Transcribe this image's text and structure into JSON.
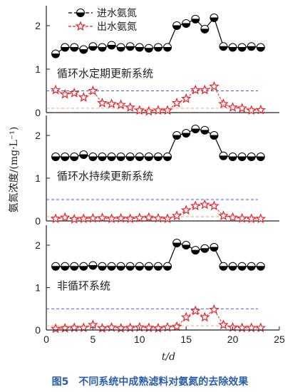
{
  "caption": "图5　不同系统中成熟滤料对氨氮的去除效果",
  "chart_data": {
    "type": "line",
    "xlabel": "t/d",
    "ylabel": "氨氮浓度/(mg·L⁻¹)",
    "xlim": [
      0,
      25
    ],
    "xticks": [
      "0",
      "5",
      "10",
      "15",
      "20",
      "25"
    ],
    "legend": [
      "进水氨氮",
      "出水氨氮"
    ],
    "legend_position": "top-left",
    "colors": {
      "influent": "#000000",
      "effluent": "#e8202a",
      "ref_blue": "#4a5ad8",
      "ref_orange": "#f0a060"
    },
    "panels": [
      {
        "title": "循环水定期更新系统",
        "yticks": [
          "0",
          "1",
          "2"
        ],
        "ylim": [
          0,
          2.35
        ],
        "ref_lines": [
          0.5,
          0.1
        ],
        "x": [
          1,
          2,
          3,
          4,
          5,
          6,
          7,
          8,
          9,
          10,
          11,
          12,
          13,
          14,
          15,
          16,
          17,
          18,
          19,
          20,
          21,
          22,
          23
        ],
        "series": [
          {
            "name": "进水氨氮",
            "values": [
              1.35,
              1.5,
              1.5,
              1.45,
              1.52,
              1.5,
              1.55,
              1.5,
              1.52,
              1.5,
              1.48,
              1.5,
              1.5,
              2.0,
              2.05,
              2.15,
              1.92,
              2.18,
              1.52,
              1.5,
              1.5,
              1.52,
              1.5
            ]
          },
          {
            "name": "出水氨氮",
            "values": [
              0.52,
              0.42,
              0.45,
              0.35,
              0.5,
              0.22,
              0.2,
              0.18,
              0.12,
              0.05,
              0.03,
              0.05,
              0.05,
              0.22,
              0.32,
              0.52,
              0.52,
              0.6,
              0.2,
              0.12,
              0.1,
              0.05,
              0.06
            ]
          }
        ]
      },
      {
        "title": "循环水持续更新系统",
        "yticks": [
          "0",
          "1",
          "2"
        ],
        "ylim": [
          0,
          2.35
        ],
        "ref_lines": [
          0.5,
          0.1
        ],
        "x": [
          1,
          2,
          3,
          4,
          5,
          6,
          7,
          8,
          9,
          10,
          11,
          12,
          13,
          14,
          15,
          16,
          17,
          18,
          19,
          20,
          21,
          22,
          23
        ],
        "series": [
          {
            "name": "进水氨氮",
            "values": [
              1.5,
              1.5,
              1.5,
              1.55,
              1.5,
              1.5,
              1.5,
              1.5,
              1.5,
              1.5,
              1.5,
              1.5,
              1.5,
              2.0,
              2.05,
              2.15,
              2.12,
              2.0,
              1.52,
              1.5,
              1.5,
              1.5,
              1.5
            ]
          },
          {
            "name": "出水氨氮",
            "values": [
              0.05,
              0.08,
              0.04,
              0.05,
              0.06,
              0.07,
              0.05,
              0.06,
              0.05,
              0.07,
              0.08,
              0.06,
              0.05,
              0.12,
              0.25,
              0.35,
              0.38,
              0.35,
              0.12,
              0.08,
              0.06,
              0.05,
              0.05
            ]
          }
        ]
      },
      {
        "title": "非循环系统",
        "yticks": [
          "0",
          "1",
          "2"
        ],
        "ylim": [
          0,
          2.35
        ],
        "ref_lines": [
          0.5,
          0.1
        ],
        "x": [
          1,
          2,
          3,
          4,
          5,
          6,
          7,
          8,
          9,
          10,
          11,
          12,
          13,
          14,
          15,
          16,
          17,
          18,
          19,
          20,
          21,
          22,
          23
        ],
        "series": [
          {
            "name": "进水氨氮",
            "values": [
              1.5,
              1.5,
              1.5,
              1.5,
              1.52,
              1.5,
              1.5,
              1.5,
              1.5,
              1.5,
              1.5,
              1.5,
              1.5,
              2.05,
              2.0,
              1.88,
              1.92,
              1.95,
              1.5,
              1.5,
              1.5,
              1.5,
              1.5
            ]
          },
          {
            "name": "出水氨氮",
            "values": [
              0.03,
              0.04,
              0.05,
              0.05,
              0.12,
              0.04,
              0.06,
              0.04,
              0.05,
              0.06,
              0.05,
              0.04,
              0.06,
              0.08,
              0.3,
              0.45,
              0.3,
              0.48,
              0.12,
              0.06,
              0.05,
              0.05,
              0.05
            ]
          }
        ]
      }
    ]
  }
}
